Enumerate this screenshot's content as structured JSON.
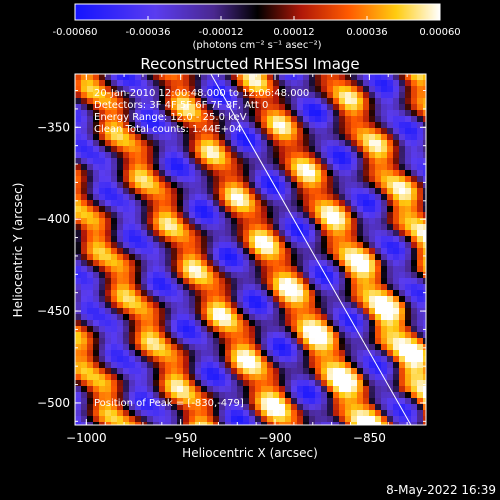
{
  "chart_data": {
    "type": "heatmap",
    "title": "Reconstructed RHESSI Image",
    "colorbar": {
      "ticks": [
        "-0.00060",
        "-0.00036",
        "-0.00012",
        "0.00012",
        "0.00036",
        "0.00060"
      ],
      "range": [
        -0.0006,
        0.0006
      ],
      "unit_label": "(photons cm⁻² s⁻¹ asec⁻²)"
    },
    "xlabel": "Heliocentric X (arcsec)",
    "ylabel": "Heliocentric Y (arcsec)",
    "xlim": [
      -1006,
      -820
    ],
    "ylim": [
      -512,
      -321
    ],
    "xticks": [
      -1000,
      -950,
      -900,
      -850
    ],
    "yticks": [
      -350,
      -400,
      -450,
      -500
    ],
    "xtick_labels": [
      "−1000",
      "−950",
      "−900",
      "−850"
    ],
    "ytick_labels": [
      "−350",
      "−400",
      "−450",
      "−500"
    ],
    "annotations": [
      "20-Jan-2010 12:00:48.000 to 12:06:48.000",
      "Detectors: 3F 4F 5F 6F 7F 8F, Att 0",
      "Energy Range: 12.0 - 25.0 keV",
      "Clean     Total counts: 1.44E+04"
    ],
    "peak_label": "Position of Peak = [-830,-479]",
    "peak": [
      -830,
      -479
    ],
    "limb_line": [
      [
        -934,
        -321
      ],
      [
        -828,
        -512
      ]
    ],
    "colormap": "red-temperature diverging (blue-violet negative, black near zero, red-orange-yellow-white positive)",
    "field_description": "diagonal fringe stripes running top-left to bottom-right"
  },
  "footer": {
    "timestamp": "8-May-2022 16:39"
  }
}
